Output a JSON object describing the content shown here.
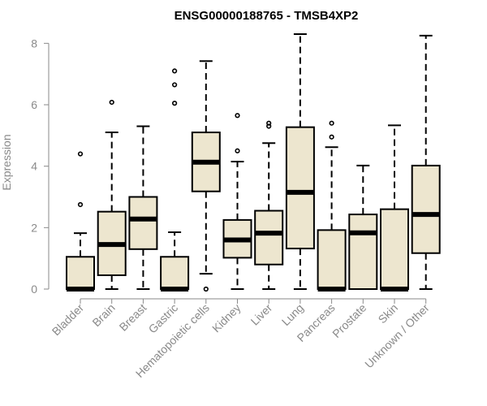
{
  "chart_data": {
    "type": "box",
    "title": "ENSG00000188765 - TMSB4XP2",
    "ylabel": "Expression",
    "xlabel": "",
    "ylim": [
      0,
      8.3
    ],
    "yticks": [
      0,
      2,
      4,
      6,
      8
    ],
    "box_fill": "#ede6cf",
    "outline_color": "#000000",
    "categories": [
      "Bladder",
      "Brain",
      "Breast",
      "Gastric",
      "Hematopoietic cells",
      "Kidney",
      "Liver",
      "Lung",
      "Pancreas",
      "Prostate",
      "Skin",
      "Unknown / Other"
    ],
    "boxes": [
      {
        "min": 0,
        "q1": 0,
        "median": 0,
        "q3": 1.05,
        "max": 1.82,
        "outliers": [
          2.75,
          4.4
        ]
      },
      {
        "min": 0,
        "q1": 0.45,
        "median": 1.45,
        "q3": 2.52,
        "max": 5.1,
        "outliers": [
          6.08
        ]
      },
      {
        "min": 0,
        "q1": 1.3,
        "median": 2.28,
        "q3": 3.0,
        "max": 5.3,
        "outliers": []
      },
      {
        "min": 0,
        "q1": 0,
        "median": 0,
        "q3": 1.05,
        "max": 1.85,
        "outliers": [
          6.05,
          6.65,
          7.1
        ]
      },
      {
        "min": 0.5,
        "q1": 3.18,
        "median": 4.13,
        "q3": 5.1,
        "max": 7.42,
        "outliers": [
          0
        ]
      },
      {
        "min": 0,
        "q1": 1.02,
        "median": 1.6,
        "q3": 2.25,
        "max": 4.15,
        "outliers": [
          4.5,
          5.65
        ]
      },
      {
        "min": 0,
        "q1": 0.8,
        "median": 1.82,
        "q3": 2.55,
        "max": 4.75,
        "outliers": [
          5.3,
          5.4
        ]
      },
      {
        "min": 0,
        "q1": 1.32,
        "median": 3.15,
        "q3": 5.27,
        "max": 8.3,
        "outliers": []
      },
      {
        "min": 0,
        "q1": 0,
        "median": 0,
        "q3": 1.92,
        "max": 4.62,
        "outliers": [
          4.95,
          5.4
        ]
      },
      {
        "min": 0,
        "q1": 0,
        "median": 1.83,
        "q3": 2.43,
        "max": 4.02,
        "outliers": []
      },
      {
        "min": 0,
        "q1": 0,
        "median": 0,
        "q3": 2.6,
        "max": 5.33,
        "outliers": []
      },
      {
        "min": 0,
        "q1": 1.17,
        "median": 2.43,
        "q3": 4.02,
        "max": 8.25,
        "outliers": []
      }
    ]
  }
}
